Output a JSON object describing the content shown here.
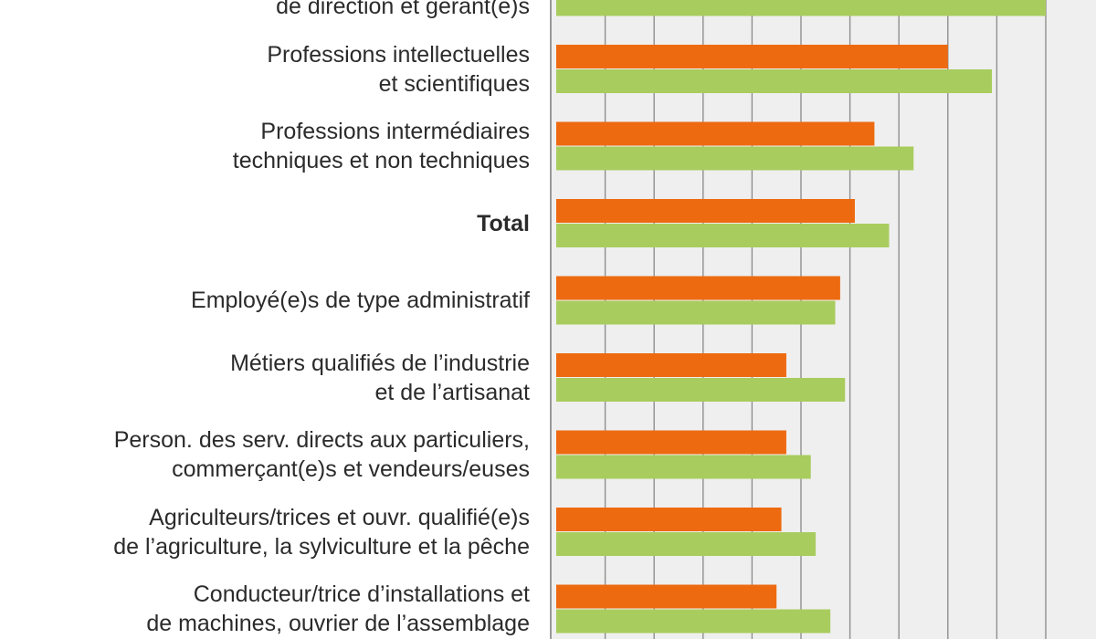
{
  "chart_data": {
    "type": "bar",
    "orientation": "horizontal",
    "categories": [
      "Directeurs/trices, cadres\nde direction et gérant(e)s",
      "Professions intellectuelles\net scientifiques",
      "Professions intermédiaires\ntechniques et non techniques",
      "Total",
      "Employé(e)s de type administratif",
      "Métiers qualifiés de l’industrie\net de l’artisanat",
      "Person. des serv. directs aux particuliers,\ncommerçant(e)s et vendeurs/euses",
      "Agriculteurs/trices et ouvr. qualifié(e)s\nde l’agriculture, la sylviculture et la pêche",
      "Conducteur/trice d’installations et\nde machines, ouvrier de l’assemblage"
    ],
    "bold_categories": [
      "Total"
    ],
    "series": [
      {
        "color": "#ee6a10",
        "values": [
          null,
          8.0,
          6.5,
          6.1,
          5.8,
          4.7,
          4.7,
          4.6,
          4.5
        ]
      },
      {
        "color": "#a9cc5e",
        "values": [
          10.0,
          8.9,
          7.3,
          6.8,
          5.7,
          5.9,
          5.2,
          5.3,
          5.6
        ]
      }
    ],
    "xlim": [
      0,
      10.9
    ],
    "grid": true
  }
}
